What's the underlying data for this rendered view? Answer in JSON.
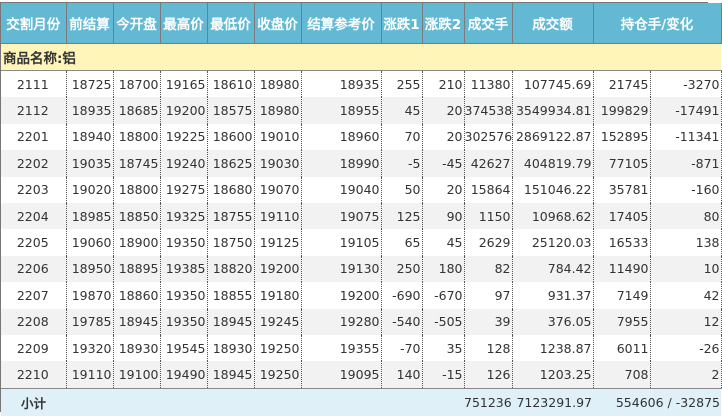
{
  "headers": [
    "交割月份",
    "前结算",
    "今开盘",
    "最高价",
    "最低价",
    "收盘价",
    "结算参考价",
    "涨跌1",
    "涨跌2",
    "成交手",
    "成交额",
    "持仓手/变化"
  ],
  "product_label": "商品名称:铝",
  "rows": [
    [
      "2111",
      "18725",
      "18700",
      "19165",
      "18610",
      "18980",
      "18935",
      "255",
      "210",
      "11380",
      "107745.69",
      "21745",
      "-3270"
    ],
    [
      "2112",
      "18935",
      "18685",
      "19200",
      "18575",
      "18980",
      "18955",
      "45",
      "20",
      "374538",
      "3549934.81",
      "199829",
      "-17491"
    ],
    [
      "2201",
      "18940",
      "18800",
      "19225",
      "18600",
      "19010",
      "18960",
      "70",
      "20",
      "302576",
      "2869122.87",
      "152895",
      "-11341"
    ],
    [
      "2202",
      "19035",
      "18745",
      "19240",
      "18625",
      "19030",
      "18990",
      "-5",
      "-45",
      "42627",
      "404819.79",
      "77105",
      "-871"
    ],
    [
      "2203",
      "19020",
      "18800",
      "19275",
      "18680",
      "19070",
      "19040",
      "50",
      "20",
      "15864",
      "151046.22",
      "35781",
      "-160"
    ],
    [
      "2204",
      "18985",
      "18850",
      "19325",
      "18755",
      "19110",
      "19075",
      "125",
      "90",
      "1150",
      "10968.62",
      "17405",
      "80"
    ],
    [
      "2205",
      "19060",
      "18900",
      "19350",
      "18750",
      "19125",
      "19105",
      "65",
      "45",
      "2629",
      "25120.03",
      "16533",
      "138"
    ],
    [
      "2206",
      "18950",
      "18895",
      "19385",
      "18820",
      "19200",
      "19130",
      "250",
      "180",
      "82",
      "784.42",
      "11490",
      "10"
    ],
    [
      "2207",
      "19870",
      "18860",
      "19350",
      "18855",
      "19180",
      "19200",
      "-690",
      "-670",
      "97",
      "931.37",
      "7149",
      "42"
    ],
    [
      "2208",
      "19785",
      "18945",
      "19350",
      "18945",
      "19245",
      "19280",
      "-540",
      "-505",
      "39",
      "376.05",
      "7955",
      "12"
    ],
    [
      "2209",
      "19320",
      "18930",
      "19545",
      "18930",
      "19250",
      "19355",
      "-70",
      "35",
      "128",
      "1238.87",
      "6011",
      "-26"
    ],
    [
      "2210",
      "19110",
      "19100",
      "19490",
      "18945",
      "19250",
      "19095",
      "140",
      "-15",
      "126",
      "1203.25",
      "708",
      "2"
    ]
  ],
  "footer": {
    "label": "小计",
    "volume": "751236",
    "turnover": "7123291.97",
    "open_interest": "554606 / -32875"
  }
}
